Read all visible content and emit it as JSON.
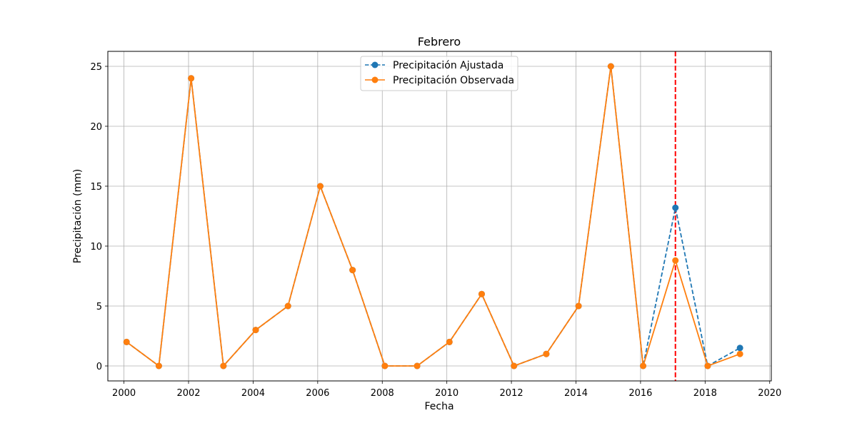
{
  "chart_data": {
    "type": "line",
    "title": "Febrero",
    "xlabel": "Fecha",
    "ylabel": "Precipitación (mm)",
    "xlim": [
      1999.5,
      2020.05
    ],
    "ylim": [
      -1.25,
      26.25
    ],
    "x_ticks": [
      2000,
      2002,
      2004,
      2006,
      2008,
      2010,
      2012,
      2014,
      2016,
      2018,
      2020
    ],
    "y_ticks": [
      0,
      5,
      10,
      15,
      20,
      25
    ],
    "grid": true,
    "legend_position": "upper center",
    "x": [
      2000.08,
      2001.08,
      2002.08,
      2003.08,
      2004.08,
      2005.08,
      2006.08,
      2007.08,
      2008.08,
      2009.08,
      2010.08,
      2011.08,
      2012.08,
      2013.08,
      2014.08,
      2015.08,
      2016.08,
      2017.08,
      2018.08,
      2019.08
    ],
    "series": [
      {
        "name": "Precipitación Ajustada",
        "color": "#1f77b4",
        "style": "dashed",
        "values": [
          2,
          0,
          24,
          0,
          3,
          5,
          15,
          8,
          0,
          0,
          2,
          6,
          0,
          1,
          5,
          25,
          0,
          13.2,
          0,
          1.5
        ]
      },
      {
        "name": "Precipitación Observada",
        "color": "#ff7f0e",
        "style": "solid",
        "values": [
          2,
          0,
          24,
          0,
          3,
          5,
          15,
          8,
          0,
          0,
          2,
          6,
          0,
          1,
          5,
          25,
          0,
          8.8,
          0,
          1
        ]
      }
    ],
    "vline": {
      "x": 2017.08,
      "color": "#ff0000",
      "style": "dashed"
    }
  }
}
